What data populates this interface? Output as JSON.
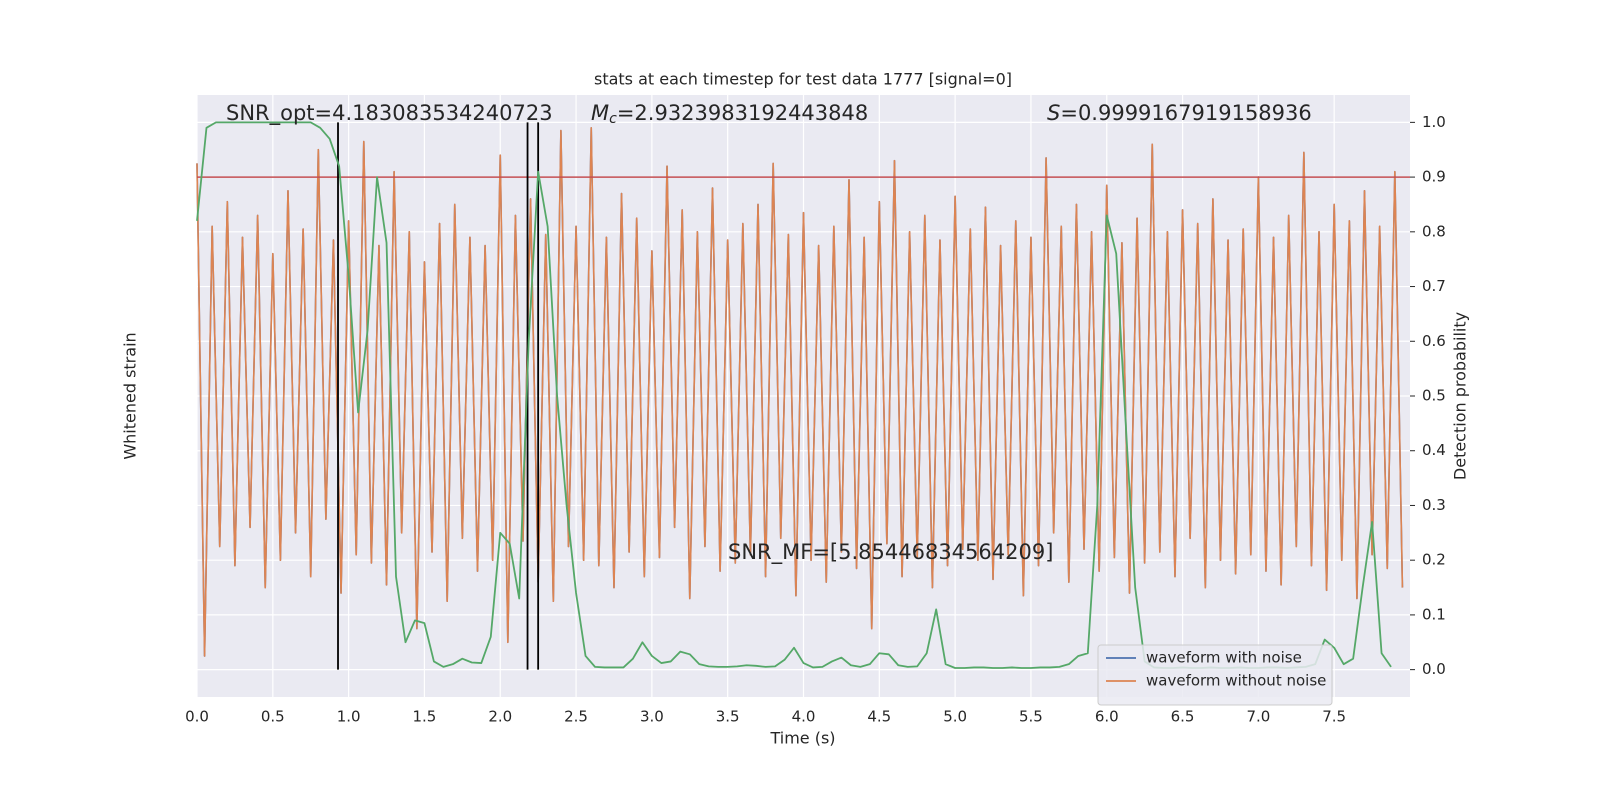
{
  "chart_data": {
    "type": "line",
    "title": "stats at each timestep for test data 1777 [signal=0]",
    "xlabel": "Time (s)",
    "ylabel": "Whitened strain",
    "y2label": "Detection probability",
    "xlim": [
      0,
      8.0
    ],
    "xticks": [
      {
        "value": 0,
        "label": "0.0"
      },
      0.5,
      {
        "value": 1,
        "label": "1.0"
      },
      1.5,
      {
        "value": 2,
        "label": "2.0"
      },
      2.5,
      {
        "value": 3,
        "label": "3.0"
      },
      3.5,
      {
        "value": 4,
        "label": "4.0"
      },
      4.5,
      {
        "value": 5,
        "label": "5.0"
      },
      5.5,
      {
        "value": 6,
        "label": "6.0"
      },
      6.5,
      {
        "value": 7,
        "label": "7.0"
      },
      7.5
    ],
    "ylim": [
      -1.1,
      1.1
    ],
    "y2lim": [
      -0.05,
      1.05
    ],
    "y2ticks": [
      {
        "value": 0,
        "label": "0.0"
      },
      0.1,
      0.2,
      0.3,
      0.4,
      0.5,
      0.6,
      0.7,
      0.8,
      0.9,
      {
        "value": 1,
        "label": "1.0"
      }
    ],
    "grid": true,
    "legend": "lower right",
    "series": [
      {
        "name": "waveform with noise",
        "color": "#4c72b0",
        "x": [
          0,
          0.05,
          0.1,
          0.15,
          0.2,
          0.25,
          0.3,
          0.35,
          0.4,
          0.45,
          0.5,
          0.55,
          0.6,
          0.65,
          0.7,
          0.75,
          0.8,
          0.85,
          0.9,
          0.95,
          1,
          1.05,
          1.1,
          1.15,
          1.2,
          1.25,
          1.3,
          1.35,
          1.4,
          1.45,
          1.5,
          1.55,
          1.6,
          1.65,
          1.7,
          1.75,
          1.8,
          1.85,
          1.9,
          1.95,
          2,
          2.05,
          2.1,
          2.15,
          2.2,
          2.25,
          2.3,
          2.35,
          2.4,
          2.45,
          2.5,
          2.55,
          2.6,
          2.65,
          2.7,
          2.75,
          2.8,
          2.85,
          2.9,
          2.95,
          3,
          3.05,
          3.1,
          3.15,
          3.2,
          3.25,
          3.3,
          3.35,
          3.4,
          3.45,
          3.5,
          3.55,
          3.6,
          3.65,
          3.7,
          3.75,
          3.8,
          3.85,
          3.9,
          3.95,
          4,
          4.05,
          4.1,
          4.15,
          4.2,
          4.25,
          4.3,
          4.35,
          4.4,
          4.45,
          4.5,
          4.55,
          4.6,
          4.65,
          4.7,
          4.75,
          4.8,
          4.85,
          4.9,
          4.95,
          5,
          5.05,
          5.1,
          5.15,
          5.2,
          5.25,
          5.3,
          5.35,
          5.4,
          5.45,
          5.5,
          5.55,
          5.6,
          5.65,
          5.7,
          5.75,
          5.8,
          5.85,
          5.9,
          5.95,
          6,
          6.05,
          6.1,
          6.15,
          6.2,
          6.25,
          6.3,
          6.35,
          6.4,
          6.45,
          6.5,
          6.55,
          6.6,
          6.65,
          6.7,
          6.75,
          6.8,
          6.85,
          6.9,
          6.95,
          7,
          7.05,
          7.1,
          7.15,
          7.2,
          7.25,
          7.3,
          7.35,
          7.4,
          7.45,
          7.5,
          7.55,
          7.6,
          7.65,
          7.7,
          7.75,
          7.8,
          7.85,
          7.9,
          7.95
        ],
        "values": [
          0.85,
          -0.95,
          0.62,
          -0.55,
          0.71,
          -0.62,
          0.58,
          -0.48,
          0.66,
          -0.7,
          0.52,
          -0.6,
          0.75,
          -0.5,
          0.61,
          -0.66,
          0.9,
          -0.45,
          0.57,
          -0.72,
          0.64,
          -0.58,
          0.93,
          -0.61,
          0.55,
          -0.69,
          0.82,
          -0.5,
          0.6,
          -0.85,
          0.49,
          -0.57,
          0.63,
          -0.75,
          0.7,
          -0.52,
          0.58,
          -0.64,
          0.55,
          -0.6,
          0.88,
          -0.9,
          0.66,
          -0.53,
          0.72,
          -0.68,
          0.59,
          -0.75,
          0.97,
          -0.55,
          0.62,
          -0.6,
          0.98,
          -0.62,
          0.58,
          -0.7,
          0.74,
          -0.57,
          0.65,
          -0.66,
          0.53,
          -0.59,
          0.84,
          -0.48,
          0.68,
          -0.74,
          0.6,
          -0.55,
          0.76,
          -0.64,
          0.57,
          -0.61,
          0.63,
          -0.58,
          0.7,
          -0.66,
          0.85,
          -0.52,
          0.59,
          -0.73,
          0.67,
          -0.6,
          0.55,
          -0.68,
          0.62,
          -0.57,
          0.79,
          -0.63,
          0.58,
          -0.85,
          0.71,
          -0.54,
          0.86,
          -0.66,
          0.6,
          -0.59,
          0.66,
          -0.7,
          0.57,
          -0.62,
          0.73,
          -0.56,
          0.61,
          -0.6,
          0.69,
          -0.67,
          0.55,
          -0.58,
          0.64,
          -0.73,
          0.58,
          -0.62,
          0.87,
          -0.5,
          0.62,
          -0.68,
          0.7,
          -0.56,
          0.6,
          -0.64,
          0.77,
          -0.59,
          0.56,
          -0.72,
          0.65,
          -0.61,
          0.92,
          -0.57,
          0.6,
          -0.66,
          0.68,
          -0.52,
          0.63,
          -0.7,
          0.72,
          -0.6,
          0.57,
          -0.65,
          0.61,
          -0.58,
          0.8,
          -0.64,
          0.58,
          -0.69,
          0.66,
          -0.55,
          0.89,
          -0.62,
          0.6,
          -0.71,
          0.7,
          -0.6,
          0.64,
          -0.74,
          0.75,
          -0.58,
          0.62,
          -0.63,
          0.82,
          -0.7
        ]
      },
      {
        "name": "waveform without noise",
        "color": "#dd8452",
        "x": [
          0,
          0.05,
          0.1,
          0.15,
          0.2,
          0.25,
          0.3,
          0.35,
          0.4,
          0.45,
          0.5,
          0.55,
          0.6,
          0.65,
          0.7,
          0.75,
          0.8,
          0.85,
          0.9,
          0.95,
          1,
          1.05,
          1.1,
          1.15,
          1.2,
          1.25,
          1.3,
          1.35,
          1.4,
          1.45,
          1.5,
          1.55,
          1.6,
          1.65,
          1.7,
          1.75,
          1.8,
          1.85,
          1.9,
          1.95,
          2,
          2.05,
          2.1,
          2.15,
          2.2,
          2.25,
          2.3,
          2.35,
          2.4,
          2.45,
          2.5,
          2.55,
          2.6,
          2.65,
          2.7,
          2.75,
          2.8,
          2.85,
          2.9,
          2.95,
          3,
          3.05,
          3.1,
          3.15,
          3.2,
          3.25,
          3.3,
          3.35,
          3.4,
          3.45,
          3.5,
          3.55,
          3.6,
          3.65,
          3.7,
          3.75,
          3.8,
          3.85,
          3.9,
          3.95,
          4,
          4.05,
          4.1,
          4.15,
          4.2,
          4.25,
          4.3,
          4.35,
          4.4,
          4.45,
          4.5,
          4.55,
          4.6,
          4.65,
          4.7,
          4.75,
          4.8,
          4.85,
          4.9,
          4.95,
          5,
          5.05,
          5.1,
          5.15,
          5.2,
          5.25,
          5.3,
          5.35,
          5.4,
          5.45,
          5.5,
          5.55,
          5.6,
          5.65,
          5.7,
          5.75,
          5.8,
          5.85,
          5.9,
          5.95,
          6,
          6.05,
          6.1,
          6.15,
          6.2,
          6.25,
          6.3,
          6.35,
          6.4,
          6.45,
          6.5,
          6.55,
          6.6,
          6.65,
          6.7,
          6.75,
          6.8,
          6.85,
          6.9,
          6.95,
          7,
          7.05,
          7.1,
          7.15,
          7.2,
          7.25,
          7.3,
          7.35,
          7.4,
          7.45,
          7.5,
          7.55,
          7.6,
          7.65,
          7.7,
          7.75,
          7.8,
          7.85,
          7.9,
          7.95
        ],
        "values": [
          0.85,
          -0.95,
          0.62,
          -0.55,
          0.71,
          -0.62,
          0.58,
          -0.48,
          0.66,
          -0.7,
          0.52,
          -0.6,
          0.75,
          -0.5,
          0.61,
          -0.66,
          0.9,
          -0.45,
          0.57,
          -0.72,
          0.64,
          -0.58,
          0.93,
          -0.61,
          0.55,
          -0.69,
          0.82,
          -0.5,
          0.6,
          -0.85,
          0.49,
          -0.57,
          0.63,
          -0.75,
          0.7,
          -0.52,
          0.58,
          -0.64,
          0.55,
          -0.6,
          0.88,
          -0.9,
          0.66,
          -0.53,
          0.72,
          -0.68,
          0.59,
          -0.75,
          0.97,
          -0.55,
          0.62,
          -0.6,
          0.98,
          -0.62,
          0.58,
          -0.7,
          0.74,
          -0.57,
          0.65,
          -0.66,
          0.53,
          -0.59,
          0.84,
          -0.48,
          0.68,
          -0.74,
          0.6,
          -0.55,
          0.76,
          -0.64,
          0.57,
          -0.61,
          0.63,
          -0.58,
          0.7,
          -0.66,
          0.85,
          -0.52,
          0.59,
          -0.73,
          0.67,
          -0.6,
          0.55,
          -0.68,
          0.62,
          -0.57,
          0.79,
          -0.63,
          0.58,
          -0.85,
          0.71,
          -0.54,
          0.86,
          -0.66,
          0.6,
          -0.59,
          0.66,
          -0.7,
          0.57,
          -0.62,
          0.73,
          -0.56,
          0.61,
          -0.6,
          0.69,
          -0.67,
          0.55,
          -0.58,
          0.64,
          -0.73,
          0.58,
          -0.62,
          0.87,
          -0.5,
          0.62,
          -0.68,
          0.7,
          -0.56,
          0.6,
          -0.64,
          0.77,
          -0.59,
          0.56,
          -0.72,
          0.65,
          -0.61,
          0.92,
          -0.57,
          0.6,
          -0.66,
          0.68,
          -0.52,
          0.63,
          -0.7,
          0.72,
          -0.6,
          0.57,
          -0.65,
          0.61,
          -0.58,
          0.8,
          -0.64,
          0.58,
          -0.69,
          0.66,
          -0.55,
          0.89,
          -0.62,
          0.6,
          -0.71,
          0.7,
          -0.6,
          0.64,
          -0.74,
          0.75,
          -0.58,
          0.62,
          -0.63,
          0.82,
          -0.7
        ]
      },
      {
        "color": "#55a868",
        "axis": "y2",
        "x": [
          0,
          0.0625,
          0.125,
          0.1875,
          0.25,
          0.3125,
          0.375,
          0.4375,
          0.5,
          0.5625,
          0.625,
          0.6875,
          0.75,
          0.8125,
          0.875,
          0.9375,
          1,
          1.0625,
          1.125,
          1.1875,
          1.25,
          1.3125,
          1.375,
          1.4375,
          1.5,
          1.5625,
          1.625,
          1.6875,
          1.75,
          1.8125,
          1.875,
          1.9375,
          2,
          2.0625,
          2.125,
          2.1875,
          2.25,
          2.3125,
          2.375,
          2.4375,
          2.5,
          2.5625,
          2.625,
          2.6875,
          2.75,
          2.8125,
          2.875,
          2.9375,
          3,
          3.0625,
          3.125,
          3.1875,
          3.25,
          3.3125,
          3.375,
          3.4375,
          3.5,
          3.5625,
          3.625,
          3.6875,
          3.75,
          3.8125,
          3.875,
          3.9375,
          4,
          4.0625,
          4.125,
          4.1875,
          4.25,
          4.3125,
          4.375,
          4.4375,
          4.5,
          4.5625,
          4.625,
          4.6875,
          4.75,
          4.8125,
          4.875,
          4.9375,
          5,
          5.0625,
          5.125,
          5.1875,
          5.25,
          5.3125,
          5.375,
          5.4375,
          5.5,
          5.5625,
          5.625,
          5.6875,
          5.75,
          5.8125,
          5.875,
          5.9375,
          6,
          6.0625,
          6.125,
          6.1875,
          6.25,
          6.3125,
          6.375,
          6.4375,
          6.5,
          6.5625,
          6.625,
          6.6875,
          6.75,
          6.8125,
          6.875,
          6.9375,
          7,
          7.0625,
          7.125,
          7.1875,
          7.25,
          7.3125,
          7.375,
          7.4375,
          7.5,
          7.5625,
          7.625,
          7.6875,
          7.75,
          7.8125,
          7.875
        ],
        "values": [
          0.82,
          0.99,
          1.0,
          1.0,
          1.0,
          1.0,
          1.0,
          1.0,
          1.0,
          1.0,
          1.0,
          1.0,
          1.0,
          0.99,
          0.97,
          0.92,
          0.72,
          0.47,
          0.62,
          0.9,
          0.78,
          0.17,
          0.05,
          0.09,
          0.085,
          0.015,
          0.005,
          0.01,
          0.02,
          0.013,
          0.012,
          0.06,
          0.25,
          0.23,
          0.13,
          0.6,
          0.91,
          0.81,
          0.5,
          0.3,
          0.14,
          0.025,
          0.005,
          0.004,
          0.004,
          0.004,
          0.02,
          0.05,
          0.025,
          0.012,
          0.015,
          0.033,
          0.028,
          0.01,
          0.006,
          0.005,
          0.005,
          0.006,
          0.008,
          0.007,
          0.005,
          0.006,
          0.018,
          0.04,
          0.012,
          0.004,
          0.005,
          0.015,
          0.022,
          0.008,
          0.005,
          0.01,
          0.03,
          0.028,
          0.008,
          0.005,
          0.006,
          0.03,
          0.11,
          0.01,
          0.003,
          0.003,
          0.004,
          0.004,
          0.003,
          0.003,
          0.004,
          0.003,
          0.003,
          0.004,
          0.004,
          0.005,
          0.01,
          0.025,
          0.03,
          0.3,
          0.83,
          0.76,
          0.45,
          0.15,
          0.015,
          0.004,
          0.003,
          0.003,
          0.004,
          0.003,
          0.003,
          0.004,
          0.003,
          0.003,
          0.004,
          0.003,
          0.003,
          0.004,
          0.004,
          0.003,
          0.004,
          0.005,
          0.01,
          0.055,
          0.04,
          0.01,
          0.02,
          0.15,
          0.27,
          0.03,
          0.005
        ]
      }
    ],
    "threshold": {
      "value": 0.9,
      "color": "#c44e52"
    },
    "vlines": {
      "x": [
        0.93,
        2.18,
        2.25
      ],
      "ymin": 0,
      "ymax": 1,
      "color": "#000000"
    },
    "annotations": {
      "snr_opt": "SNR_opt=4.183083534240723",
      "mc": {
        "symbol": "M",
        "subscript": "c",
        "text": "=2.9323983192443848"
      },
      "s": {
        "symbol": "S",
        "text": "=0.9999167919158936"
      },
      "snr_mf": "SNR_MF=[5.85446834564209]"
    }
  }
}
